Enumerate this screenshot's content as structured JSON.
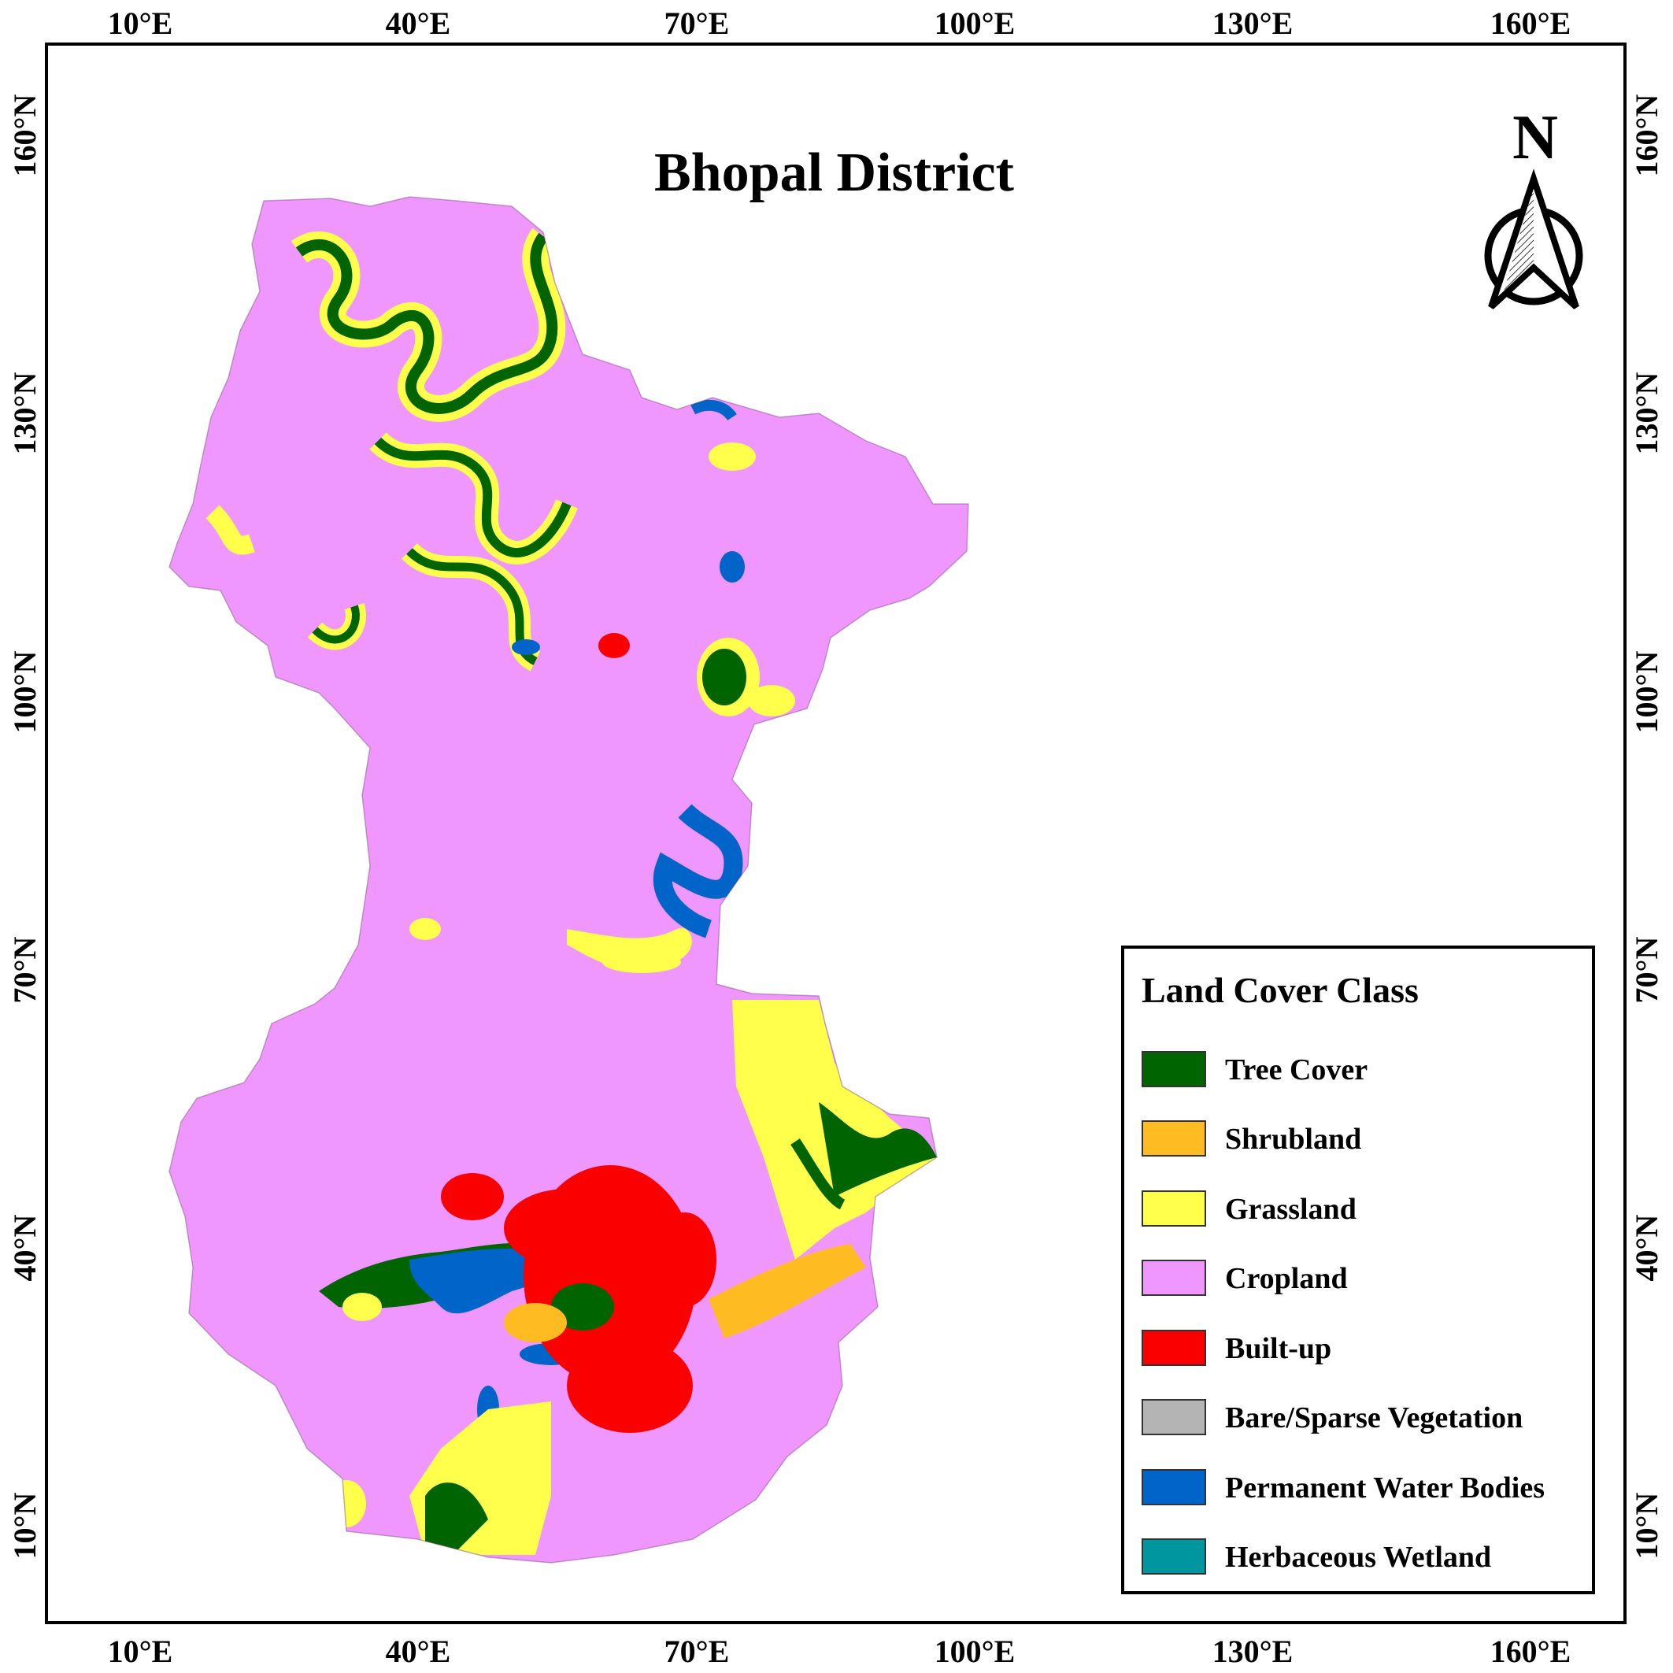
{
  "map": {
    "title": "Bhopal District",
    "north_label": "N",
    "axis_ticks": {
      "longitude": [
        "10°E",
        "40°E",
        "70°E",
        "100°E",
        "130°E",
        "160°E"
      ],
      "latitude": [
        "160°N",
        "130°N",
        "100°N",
        "70°N",
        "40°N",
        "10°N"
      ]
    },
    "legend": {
      "title": "Land Cover Class",
      "items": [
        {
          "label": "Tree Cover",
          "color": "#006400"
        },
        {
          "label": "Shrubland",
          "color": "#FFBB22"
        },
        {
          "label": "Grassland",
          "color": "#FFFF4C"
        },
        {
          "label": "Cropland",
          "color": "#F096FF"
        },
        {
          "label": "Built-up",
          "color": "#FA0000"
        },
        {
          "label": "Bare/Sparse Vegetation",
          "color": "#B4B4B4"
        },
        {
          "label": "Permanent Water Bodies",
          "color": "#0064C8"
        },
        {
          "label": "Herbaceous Wetland",
          "color": "#0096A0"
        }
      ]
    }
  }
}
